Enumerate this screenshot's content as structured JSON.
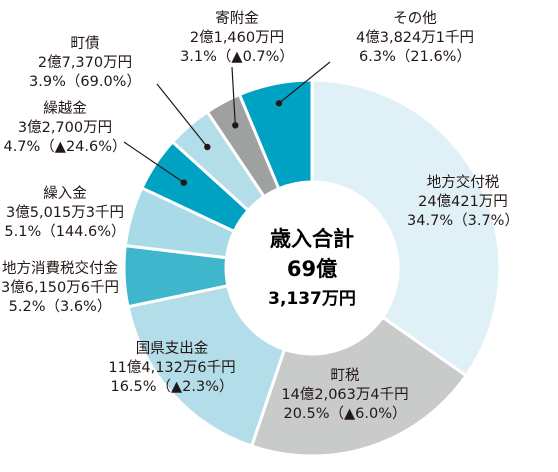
{
  "chart_data": {
    "type": "pie",
    "donut": true,
    "start": "top, clockwise",
    "center_label": [
      "歳入合計",
      "69億",
      "3,137万円"
    ],
    "slices": [
      {
        "category": "地方交付税",
        "value": 34.7,
        "amount_label": "24億421万円",
        "pct_label": "34.7%（3.7%）",
        "color": "#dff1f7"
      },
      {
        "category": "町税",
        "value": 20.5,
        "amount_label": "14億2,063万4千円",
        "pct_label": "20.5%（▲6.0%）",
        "color": "#c9caca"
      },
      {
        "category": "国県支出金",
        "value": 16.5,
        "amount_label": "11億4,132万6千円",
        "pct_label": "16.5%（▲2.3%）",
        "color": "#b2dde9"
      },
      {
        "category": "地方消費税交付金",
        "value": 5.2,
        "amount_label": "3億6,150万6千円",
        "pct_label": "5.2%（3.6%）",
        "color": "#3fb6cc"
      },
      {
        "category": "繰入金",
        "value": 5.1,
        "amount_label": "3億5,015万3千円",
        "pct_label": "5.1%（144.6%）",
        "color": "#a8dbe7"
      },
      {
        "category": "繰越金",
        "value": 4.7,
        "amount_label": "3億2,700万円",
        "pct_label": "4.7%（▲24.6%）",
        "color": "#00a2c4"
      },
      {
        "category": "町債",
        "value": 3.9,
        "amount_label": "2億7,370万円",
        "pct_label": "3.9%（69.0%）",
        "color": "#b2dde9"
      },
      {
        "category": "寄附金",
        "value": 3.1,
        "amount_label": "2億1,460万円",
        "pct_label": "3.1%（▲0.7%）",
        "color": "#9fa0a0"
      },
      {
        "category": "その他",
        "value": 6.3,
        "amount_label": "4億3,824万1千円",
        "pct_label": "6.3%（21.6%）",
        "color": "#00a2c4"
      }
    ]
  }
}
